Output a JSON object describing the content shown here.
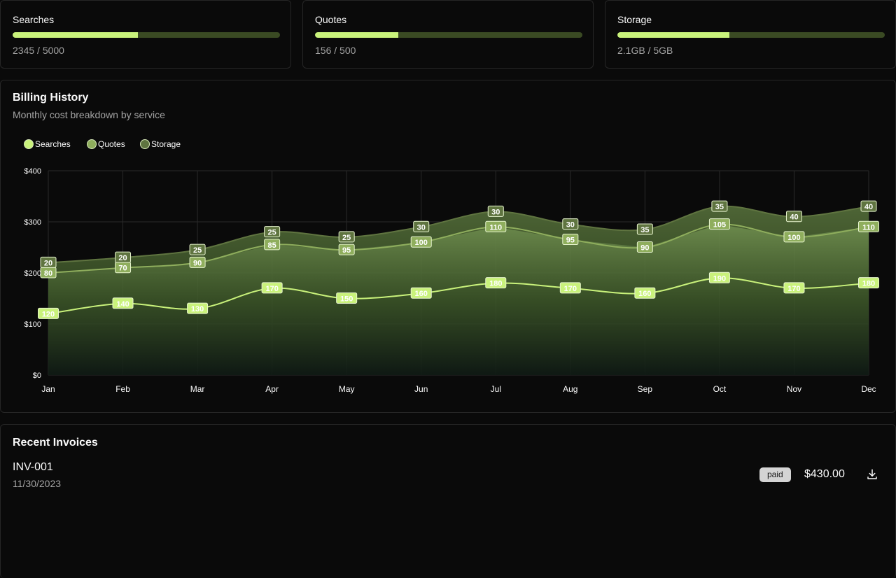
{
  "usage": [
    {
      "label": "Searches",
      "value_text": "2345 / 5000",
      "fraction": 0.469
    },
    {
      "label": "Quotes",
      "value_text": "156 / 500",
      "fraction": 0.312
    },
    {
      "label": "Storage",
      "value_text": "2.1GB / 5GB",
      "fraction": 0.42
    }
  ],
  "billing": {
    "title": "Billing History",
    "subtitle": "Monthly cost breakdown by service"
  },
  "chart_data": {
    "type": "area",
    "stacked": true,
    "categories": [
      "Jan",
      "Feb",
      "Mar",
      "Apr",
      "May",
      "Jun",
      "Jul",
      "Aug",
      "Sep",
      "Oct",
      "Nov",
      "Dec"
    ],
    "series": [
      {
        "name": "Searches",
        "color": "#c9f27b",
        "values": [
          120,
          140,
          130,
          170,
          150,
          160,
          180,
          170,
          160,
          190,
          170,
          180
        ]
      },
      {
        "name": "Quotes",
        "color": "#8fae5d",
        "values": [
          80,
          70,
          90,
          85,
          95,
          100,
          110,
          95,
          90,
          105,
          100,
          110
        ]
      },
      {
        "name": "Storage",
        "color": "#5f7440",
        "values": [
          20,
          20,
          25,
          25,
          25,
          30,
          30,
          30,
          35,
          35,
          40,
          40
        ]
      }
    ],
    "yticks": [
      "$0",
      "$100",
      "$200",
      "$300",
      "$400"
    ],
    "ylim": [
      0,
      400
    ],
    "grid": true,
    "legend": "top-left"
  },
  "invoices": {
    "title": "Recent Invoices",
    "rows": [
      {
        "id": "INV-001",
        "date": "11/30/2023",
        "status": "paid",
        "amount": "$430.00",
        "icon": "download-icon"
      }
    ]
  }
}
